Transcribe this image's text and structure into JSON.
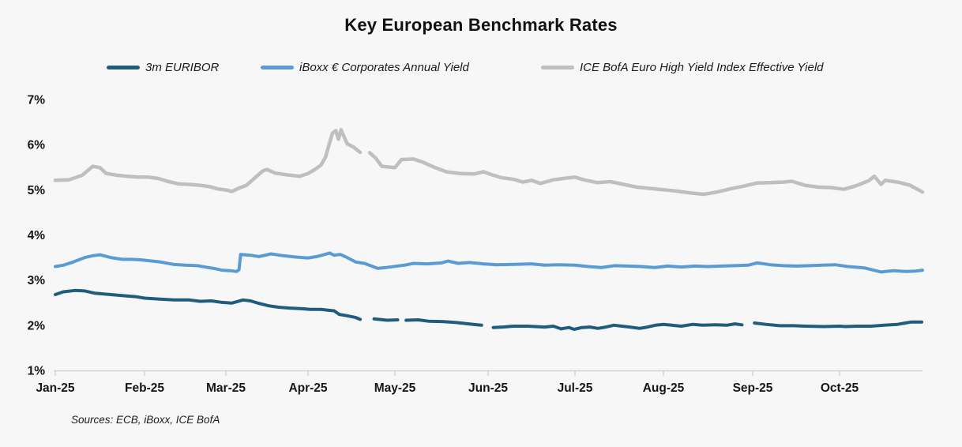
{
  "page": {
    "background": "#f7f7f8"
  },
  "chart": {
    "title": "Key European Benchmark Rates",
    "source_note": "Sources: ECB, iBoxx, ICE BofA"
  },
  "legend": {
    "position": "top",
    "items": [
      {
        "label": "3m EURIBOR",
        "color": "#1f5c7d"
      },
      {
        "label": "iBoxx € Corporates Annual Yield",
        "color": "#5b9bd5"
      },
      {
        "label": "ICE BofA Euro High Yield Index Effective Yield",
        "color": "#bfbfbf"
      }
    ]
  },
  "chart_data": {
    "type": "line",
    "title": "Key European Benchmark Rates",
    "grid": false,
    "legend_position": "top",
    "x_unit": "decimal months since Jan-2025; gaps (null) are missing trading days",
    "categories": [
      "Jan-25",
      "Feb-25",
      "Mar-25",
      "Apr-25",
      "May-25",
      "Jun-25",
      "Jul-25",
      "Aug-25",
      "Sep-25",
      "Oct-25"
    ],
    "y_tick_labels": [
      "7%",
      "6%",
      "5%",
      "4%",
      "3%",
      "2%",
      "1%"
    ],
    "y_ticks": [
      7,
      6,
      5,
      4,
      3,
      2,
      1
    ],
    "ylim": [
      1,
      7
    ],
    "y_unit": "%",
    "axis_color": "#d2d2d2",
    "series": [
      {
        "name": "3m EURIBOR",
        "color": "#1f5c7d",
        "stroke_width": 4,
        "points": [
          [
            0.0,
            2.68
          ],
          [
            0.09,
            2.74
          ],
          [
            0.22,
            2.77
          ],
          [
            0.33,
            2.76
          ],
          [
            0.44,
            2.71
          ],
          [
            0.62,
            2.68
          ],
          [
            0.8,
            2.65
          ],
          [
            0.91,
            2.63
          ],
          [
            1.0,
            2.6
          ],
          [
            1.19,
            2.58
          ],
          [
            1.36,
            2.56
          ],
          [
            1.55,
            2.56
          ],
          [
            1.68,
            2.53
          ],
          [
            1.82,
            2.54
          ],
          [
            1.94,
            2.51
          ],
          [
            2.07,
            2.49
          ],
          [
            2.21,
            2.56
          ],
          [
            2.3,
            2.54
          ],
          [
            2.39,
            2.49
          ],
          [
            2.52,
            2.43
          ],
          [
            2.64,
            2.4
          ],
          [
            2.78,
            2.38
          ],
          [
            2.9,
            2.37
          ],
          [
            3.03,
            2.35
          ],
          [
            3.15,
            2.35
          ],
          [
            3.25,
            2.33
          ],
          [
            3.3,
            2.32
          ],
          [
            3.36,
            2.24
          ],
          [
            3.45,
            2.21
          ],
          [
            3.55,
            2.17
          ],
          [
            3.6,
            2.13
          ],
          [
            3.62,
            null
          ],
          [
            3.76,
            2.14
          ],
          [
            3.91,
            2.11
          ],
          [
            4.03,
            2.12
          ],
          [
            4.05,
            null
          ],
          [
            4.12,
            2.11
          ],
          [
            4.25,
            2.12
          ],
          [
            4.36,
            2.09
          ],
          [
            4.52,
            2.08
          ],
          [
            4.66,
            2.06
          ],
          [
            4.84,
            2.02
          ],
          [
            4.93,
            2.0
          ],
          [
            4.96,
            null
          ],
          [
            5.06,
            1.95
          ],
          [
            5.17,
            1.96
          ],
          [
            5.29,
            1.98
          ],
          [
            5.45,
            1.98
          ],
          [
            5.65,
            1.96
          ],
          [
            5.75,
            1.98
          ],
          [
            5.84,
            1.92
          ],
          [
            5.93,
            1.95
          ],
          [
            5.99,
            1.91
          ],
          [
            6.08,
            1.95
          ],
          [
            6.17,
            1.96
          ],
          [
            6.26,
            1.93
          ],
          [
            6.35,
            1.96
          ],
          [
            6.44,
            2.0
          ],
          [
            6.53,
            1.98
          ],
          [
            6.62,
            1.96
          ],
          [
            6.73,
            1.93
          ],
          [
            6.82,
            1.96
          ],
          [
            6.91,
            2.0
          ],
          [
            7.0,
            2.02
          ],
          [
            7.09,
            2.0
          ],
          [
            7.2,
            1.98
          ],
          [
            7.33,
            2.02
          ],
          [
            7.44,
            2.0
          ],
          [
            7.58,
            2.01
          ],
          [
            7.71,
            2.0
          ],
          [
            7.8,
            2.03
          ],
          [
            7.88,
            2.01
          ],
          [
            7.9,
            null
          ],
          [
            8.02,
            2.05
          ],
          [
            8.15,
            2.02
          ],
          [
            8.31,
            1.99
          ],
          [
            8.47,
            1.99
          ],
          [
            8.61,
            1.98
          ],
          [
            8.82,
            1.97
          ],
          [
            9.0,
            1.98
          ],
          [
            9.07,
            1.97
          ],
          [
            9.21,
            1.98
          ],
          [
            9.38,
            1.98
          ],
          [
            9.54,
            2.0
          ],
          [
            9.7,
            2.02
          ],
          [
            9.86,
            2.07
          ],
          [
            9.99,
            2.07
          ]
        ]
      },
      {
        "name": "iBoxx € Corporates Annual Yield",
        "color": "#5b9bd5",
        "stroke_width": 4,
        "points": [
          [
            0.0,
            3.3
          ],
          [
            0.09,
            3.33
          ],
          [
            0.2,
            3.4
          ],
          [
            0.33,
            3.5
          ],
          [
            0.42,
            3.54
          ],
          [
            0.5,
            3.56
          ],
          [
            0.62,
            3.5
          ],
          [
            0.75,
            3.46
          ],
          [
            0.85,
            3.46
          ],
          [
            0.95,
            3.45
          ],
          [
            1.05,
            3.43
          ],
          [
            1.2,
            3.4
          ],
          [
            1.35,
            3.35
          ],
          [
            1.5,
            3.33
          ],
          [
            1.65,
            3.32
          ],
          [
            1.78,
            3.28
          ],
          [
            1.88,
            3.25
          ],
          [
            1.95,
            3.22
          ],
          [
            2.05,
            3.21
          ],
          [
            2.13,
            3.19
          ],
          [
            2.16,
            3.23
          ],
          [
            2.18,
            3.57
          ],
          [
            2.3,
            3.55
          ],
          [
            2.4,
            3.52
          ],
          [
            2.55,
            3.58
          ],
          [
            2.7,
            3.54
          ],
          [
            2.85,
            3.51
          ],
          [
            3.0,
            3.49
          ],
          [
            3.1,
            3.52
          ],
          [
            3.25,
            3.6
          ],
          [
            3.3,
            3.55
          ],
          [
            3.37,
            3.57
          ],
          [
            3.45,
            3.5
          ],
          [
            3.55,
            3.4
          ],
          [
            3.65,
            3.37
          ],
          [
            3.8,
            3.26
          ],
          [
            3.9,
            3.28
          ],
          [
            4.1,
            3.33
          ],
          [
            4.2,
            3.37
          ],
          [
            4.35,
            3.36
          ],
          [
            4.5,
            3.38
          ],
          [
            4.57,
            3.42
          ],
          [
            4.68,
            3.37
          ],
          [
            4.8,
            3.39
          ],
          [
            4.95,
            3.36
          ],
          [
            5.1,
            3.34
          ],
          [
            5.3,
            3.35
          ],
          [
            5.5,
            3.36
          ],
          [
            5.65,
            3.33
          ],
          [
            5.8,
            3.34
          ],
          [
            6.0,
            3.33
          ],
          [
            6.15,
            3.3
          ],
          [
            6.3,
            3.28
          ],
          [
            6.45,
            3.32
          ],
          [
            6.6,
            3.31
          ],
          [
            6.75,
            3.3
          ],
          [
            6.9,
            3.28
          ],
          [
            7.05,
            3.31
          ],
          [
            7.2,
            3.29
          ],
          [
            7.35,
            3.31
          ],
          [
            7.5,
            3.3
          ],
          [
            7.65,
            3.31
          ],
          [
            7.8,
            3.32
          ],
          [
            7.95,
            3.33
          ],
          [
            8.05,
            3.38
          ],
          [
            8.2,
            3.34
          ],
          [
            8.35,
            3.32
          ],
          [
            8.5,
            3.31
          ],
          [
            8.65,
            3.32
          ],
          [
            8.8,
            3.33
          ],
          [
            8.95,
            3.34
          ],
          [
            9.1,
            3.3
          ],
          [
            9.3,
            3.27
          ],
          [
            9.5,
            3.18
          ],
          [
            9.65,
            3.21
          ],
          [
            9.8,
            3.19
          ],
          [
            9.92,
            3.2
          ],
          [
            10.0,
            3.22
          ]
        ]
      },
      {
        "name": "ICE BofA Euro High Yield Index Effective Yield",
        "color": "#bfbfbf",
        "stroke_width": 4.5,
        "points": [
          [
            0.0,
            5.21
          ],
          [
            0.15,
            5.22
          ],
          [
            0.3,
            5.32
          ],
          [
            0.42,
            5.52
          ],
          [
            0.5,
            5.49
          ],
          [
            0.57,
            5.36
          ],
          [
            0.7,
            5.32
          ],
          [
            0.8,
            5.3
          ],
          [
            0.93,
            5.28
          ],
          [
            1.05,
            5.28
          ],
          [
            1.17,
            5.25
          ],
          [
            1.28,
            5.19
          ],
          [
            1.42,
            5.13
          ],
          [
            1.55,
            5.12
          ],
          [
            1.68,
            5.1
          ],
          [
            1.8,
            5.07
          ],
          [
            1.9,
            5.02
          ],
          [
            2.02,
            4.99
          ],
          [
            2.07,
            4.96
          ],
          [
            2.15,
            5.03
          ],
          [
            2.25,
            5.1
          ],
          [
            2.35,
            5.26
          ],
          [
            2.45,
            5.42
          ],
          [
            2.5,
            5.45
          ],
          [
            2.6,
            5.37
          ],
          [
            2.75,
            5.33
          ],
          [
            2.9,
            5.3
          ],
          [
            3.0,
            5.36
          ],
          [
            3.08,
            5.45
          ],
          [
            3.15,
            5.55
          ],
          [
            3.2,
            5.72
          ],
          [
            3.28,
            6.25
          ],
          [
            3.32,
            6.31
          ],
          [
            3.35,
            6.12
          ],
          [
            3.38,
            6.33
          ],
          [
            3.45,
            6.02
          ],
          [
            3.52,
            5.95
          ],
          [
            3.6,
            5.83
          ],
          [
            3.62,
            null
          ],
          [
            3.71,
            5.82
          ],
          [
            3.78,
            5.7
          ],
          [
            3.85,
            5.52
          ],
          [
            4.0,
            5.49
          ],
          [
            4.07,
            5.67
          ],
          [
            4.2,
            5.68
          ],
          [
            4.3,
            5.61
          ],
          [
            4.42,
            5.5
          ],
          [
            4.55,
            5.4
          ],
          [
            4.7,
            5.36
          ],
          [
            4.85,
            5.35
          ],
          [
            4.95,
            5.4
          ],
          [
            5.05,
            5.33
          ],
          [
            5.15,
            5.27
          ],
          [
            5.3,
            5.23
          ],
          [
            5.4,
            5.17
          ],
          [
            5.5,
            5.21
          ],
          [
            5.6,
            5.14
          ],
          [
            5.75,
            5.22
          ],
          [
            5.9,
            5.26
          ],
          [
            6.0,
            5.28
          ],
          [
            6.1,
            5.22
          ],
          [
            6.25,
            5.16
          ],
          [
            6.4,
            5.18
          ],
          [
            6.55,
            5.12
          ],
          [
            6.7,
            5.06
          ],
          [
            6.85,
            5.03
          ],
          [
            7.0,
            5.0
          ],
          [
            7.15,
            4.97
          ],
          [
            7.3,
            4.93
          ],
          [
            7.45,
            4.9
          ],
          [
            7.6,
            4.95
          ],
          [
            7.77,
            5.03
          ],
          [
            7.9,
            5.08
          ],
          [
            8.05,
            5.15
          ],
          [
            8.2,
            5.16
          ],
          [
            8.35,
            5.17
          ],
          [
            8.45,
            5.19
          ],
          [
            8.6,
            5.1
          ],
          [
            8.75,
            5.06
          ],
          [
            8.9,
            5.05
          ],
          [
            9.05,
            5.01
          ],
          [
            9.2,
            5.09
          ],
          [
            9.35,
            5.2
          ],
          [
            9.42,
            5.3
          ],
          [
            9.5,
            5.12
          ],
          [
            9.55,
            5.21
          ],
          [
            9.7,
            5.17
          ],
          [
            9.85,
            5.1
          ],
          [
            10.0,
            4.95
          ]
        ]
      }
    ]
  }
}
